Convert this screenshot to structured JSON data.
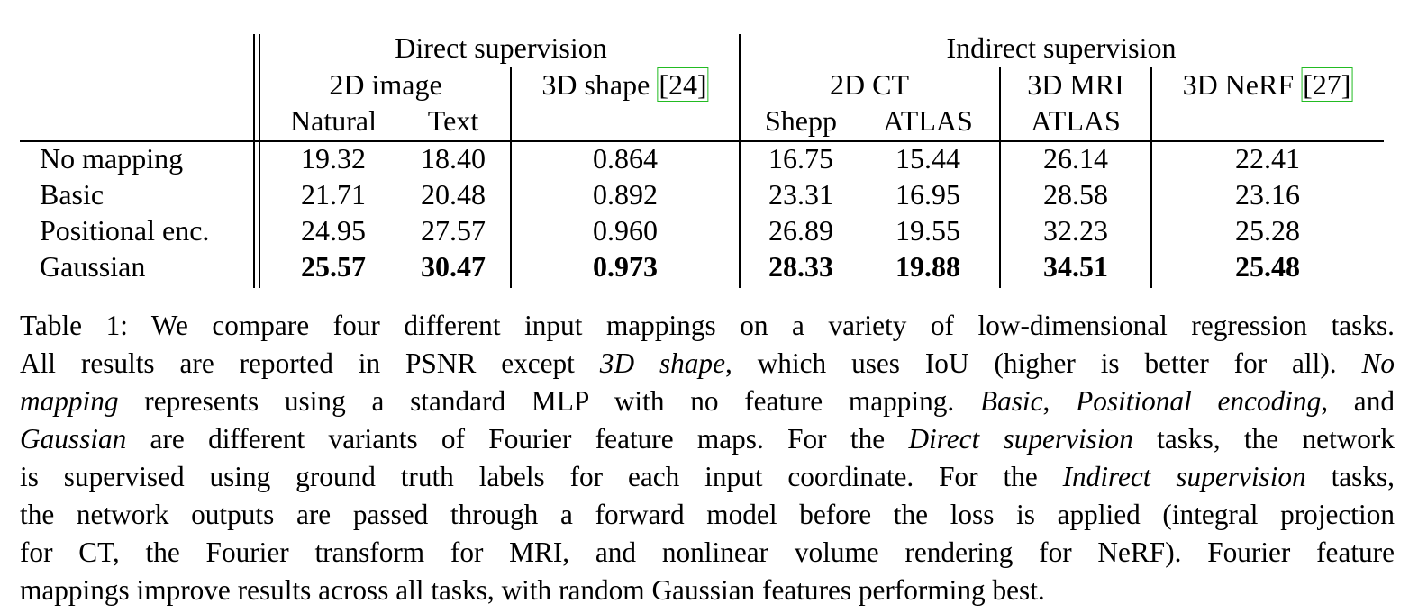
{
  "table": {
    "groups": [
      {
        "label": "Direct supervision",
        "tasks": [
          {
            "label": "2D image",
            "columns": [
              "Natural",
              "Text"
            ]
          },
          {
            "label": "3D shape",
            "ref": "[24]"
          }
        ]
      },
      {
        "label": "Indirect supervision",
        "tasks": [
          {
            "label": "2D CT",
            "columns": [
              "Shepp",
              "ATLAS"
            ]
          },
          {
            "label": "3D MRI",
            "columns": [
              "ATLAS"
            ]
          },
          {
            "label": "3D NeRF",
            "ref": "[27]"
          }
        ]
      }
    ],
    "rows": [
      {
        "label": "No mapping",
        "values": [
          "19.32",
          "18.40",
          "0.864",
          "16.75",
          "15.44",
          "26.14",
          "22.41"
        ]
      },
      {
        "label": "Basic",
        "values": [
          "21.71",
          "20.48",
          "0.892",
          "23.31",
          "16.95",
          "28.58",
          "23.16"
        ]
      },
      {
        "label": "Positional enc.",
        "values": [
          "24.95",
          "27.57",
          "0.960",
          "26.89",
          "19.55",
          "32.23",
          "25.28"
        ]
      },
      {
        "label": "Gaussian",
        "bold": true,
        "values": [
          "25.57",
          "30.47",
          "0.973",
          "28.33",
          "19.88",
          "34.51",
          "25.48"
        ]
      }
    ]
  },
  "caption": {
    "lines": [
      [
        {
          "text": "Table 1: We compare four different input mappings on a variety of low-dimensional regression tasks."
        }
      ],
      [
        {
          "text": "All results are reported in PSNR except "
        },
        {
          "text": "3D shape",
          "italic": true
        },
        {
          "text": ", which uses IoU (higher is better for all). "
        },
        {
          "text": "No",
          "italic": true
        }
      ],
      [
        {
          "text": "mapping",
          "italic": true
        },
        {
          "text": " represents using a standard MLP with no feature mapping. "
        },
        {
          "text": "Basic",
          "italic": true
        },
        {
          "text": ", "
        },
        {
          "text": "Positional encoding",
          "italic": true
        },
        {
          "text": ", and"
        }
      ],
      [
        {
          "text": "Gaussian",
          "italic": true
        },
        {
          "text": " are different variants of Fourier feature maps. For the "
        },
        {
          "text": "Direct supervision",
          "italic": true
        },
        {
          "text": " tasks, the network"
        }
      ],
      [
        {
          "text": "is supervised using ground truth labels for each input coordinate. For the "
        },
        {
          "text": "Indirect supervision",
          "italic": true
        },
        {
          "text": " tasks,"
        }
      ],
      [
        {
          "text": "the network outputs are passed through a forward model before the loss is applied (integral projection"
        }
      ],
      [
        {
          "text": "for CT, the Fourier transform for MRI, and nonlinear volume rendering for NeRF). Fourier feature"
        }
      ],
      [
        {
          "text": "mappings improve results across all tasks, with random Gaussian features performing best."
        }
      ]
    ]
  }
}
